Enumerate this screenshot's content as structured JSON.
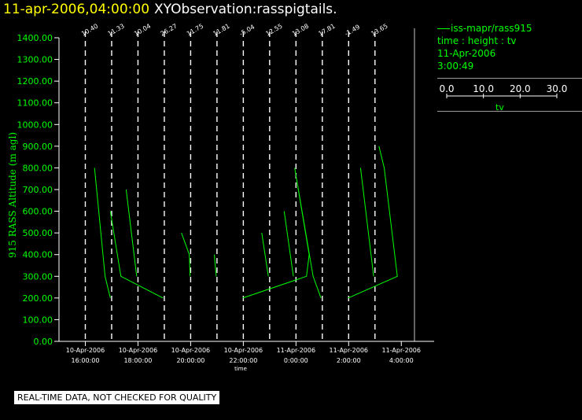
{
  "header": {
    "date_time": "11-apr-2006,04:00:00",
    "observation": "XYObservation:rasspigtails."
  },
  "legend": {
    "series_name": "iss-mapr/rass915",
    "plot_type": "time : height : tv",
    "date": "11-Apr-2006",
    "time": "3:00:49",
    "scale_ticks": [
      "0.0",
      "10.0",
      "20.0",
      "30.0"
    ],
    "scale_values": [
      0,
      10,
      20,
      30
    ],
    "scale_label": "tv"
  },
  "footer": {
    "quality_note": "REAL-TIME DATA, NOT CHECKED FOR QUALITY"
  },
  "colors": {
    "background": "#000000",
    "series": "#00ff00",
    "axis_labels": "#00ff00",
    "tick_labels": "#ffffff",
    "profile_lines": "#ffffff",
    "title_date": "#ffff00"
  },
  "chart_data": {
    "type": "line",
    "ylabel": "915 RASS Altitude (m agl)",
    "xlabel": "time",
    "ylim": [
      0,
      1400
    ],
    "yticks": [
      "0.00",
      "100.00",
      "200.00",
      "300.00",
      "400.00",
      "500.00",
      "600.00",
      "700.00",
      "800.00",
      "900.00",
      "1000.00",
      "1100.00",
      "1200.00",
      "1300.00",
      "1400.00"
    ],
    "xlim_hours": [
      15,
      28.5
    ],
    "xticks": [
      {
        "hour": 16,
        "date": "10-Apr-2006",
        "time": "16:00:00"
      },
      {
        "hour": 18,
        "date": "10-Apr-2006",
        "time": "18:00:00"
      },
      {
        "hour": 20,
        "date": "10-Apr-2006",
        "time": "20:00:00"
      },
      {
        "hour": 22,
        "date": "10-Apr-2006",
        "time": "22:00:00"
      },
      {
        "hour": 24,
        "date": "11-Apr-2006",
        "time": "0:00:00"
      },
      {
        "hour": 26,
        "date": "11-Apr-2006",
        "time": "2:00:00"
      },
      {
        "hour": 28,
        "date": "11-Apr-2006",
        "time": "4:00:00"
      }
    ],
    "profiles": [
      {
        "hour": 16.0,
        "label": "10.40"
      },
      {
        "hour": 17.0,
        "label": "11.33"
      },
      {
        "hour": 18.0,
        "label": "10.04"
      },
      {
        "hour": 19.0,
        "label": "26.27"
      },
      {
        "hour": 20.0,
        "label": "11.75"
      },
      {
        "hour": 21.0,
        "label": "11.81"
      },
      {
        "hour": 22.0,
        "label": "-5.04"
      },
      {
        "hour": 23.0,
        "label": "12.55"
      },
      {
        "hour": 24.0,
        "label": "13.08"
      },
      {
        "hour": 25.0,
        "label": "17.81"
      },
      {
        "hour": 26.0,
        "label": "-1.49"
      },
      {
        "hour": 27.0,
        "label": "13.65"
      }
    ],
    "series": [
      {
        "points": [
          [
            16.35,
            800
          ],
          [
            16.75,
            300
          ],
          [
            16.95,
            200
          ]
        ]
      },
      {
        "points": [
          [
            16.95,
            600
          ],
          [
            17.35,
            300
          ],
          [
            18.95,
            200
          ]
        ]
      },
      {
        "points": [
          [
            17.55,
            700
          ],
          [
            17.95,
            300
          ]
        ]
      },
      {
        "points": [
          [
            19.65,
            500
          ],
          [
            19.95,
            400
          ],
          [
            19.98,
            300
          ]
        ]
      },
      {
        "points": [
          [
            20.9,
            400
          ],
          [
            20.97,
            300
          ]
        ]
      },
      {
        "points": [
          [
            21.98,
            200
          ],
          [
            24.4,
            300
          ],
          [
            24.5,
            400
          ],
          [
            23.95,
            800
          ],
          [
            24.65,
            300
          ],
          [
            24.95,
            200
          ]
        ]
      },
      {
        "points": [
          [
            22.7,
            500
          ],
          [
            22.95,
            300
          ]
        ]
      },
      {
        "points": [
          [
            23.55,
            600
          ],
          [
            23.9,
            300
          ]
        ]
      },
      {
        "points": [
          [
            25.98,
            200
          ],
          [
            27.85,
            300
          ],
          [
            27.35,
            800
          ],
          [
            27.15,
            900
          ]
        ]
      },
      {
        "points": [
          [
            26.45,
            800
          ],
          [
            26.95,
            300
          ]
        ]
      }
    ]
  }
}
